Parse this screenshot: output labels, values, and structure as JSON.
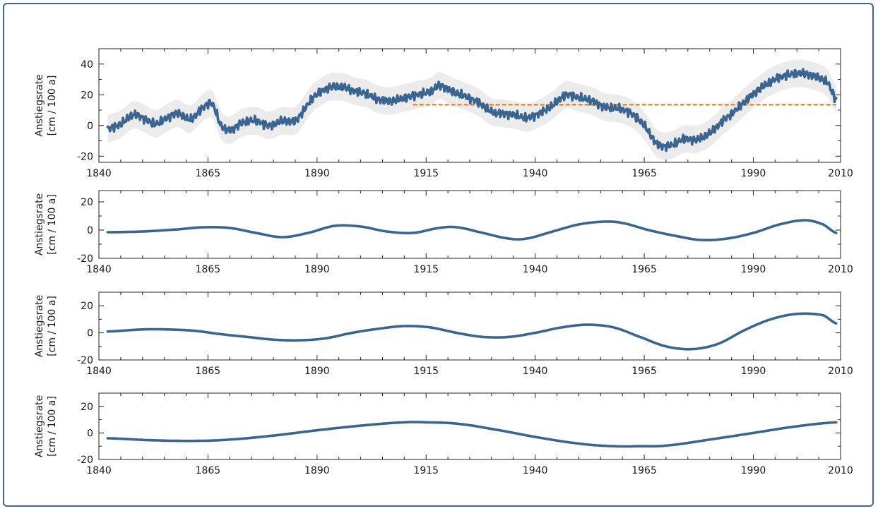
{
  "chart_data": [
    {
      "type": "line",
      "ylabel_line1": "Anstiegsrate",
      "ylabel_line2": "[cm / 100 a]",
      "xlim": [
        1840,
        2010
      ],
      "ylim": [
        -24,
        50
      ],
      "xticks": [
        1840,
        1865,
        1890,
        1915,
        1940,
        1965,
        1990,
        2010
      ],
      "yticks": [
        -20,
        0,
        20,
        40
      ],
      "grid": false,
      "noisy": true,
      "uncertainty_band_halfwidth": 9,
      "series": [
        {
          "color": "#3b6591",
          "x": [
            1842,
            1845,
            1848,
            1850,
            1853,
            1855,
            1858,
            1861,
            1864,
            1866,
            1868,
            1870,
            1873,
            1876,
            1879,
            1882,
            1885,
            1887,
            1889,
            1891,
            1893,
            1896,
            1899,
            1901,
            1904,
            1907,
            1910,
            1913,
            1916,
            1918,
            1921,
            1924,
            1927,
            1930,
            1932,
            1935,
            1938,
            1941,
            1944,
            1947,
            1950,
            1953,
            1956,
            1959,
            1962,
            1965,
            1968,
            1971,
            1974,
            1977,
            1980,
            1983,
            1986,
            1989,
            1992,
            1995,
            1998,
            2001,
            2004,
            2007,
            2009
          ],
          "values": [
            -2,
            1,
            7,
            5,
            1,
            4,
            8,
            4,
            12,
            14,
            0,
            -3,
            2,
            3,
            0,
            3,
            3,
            10,
            18,
            22,
            25,
            25,
            22,
            21,
            17,
            16,
            18,
            20,
            22,
            26,
            22,
            19,
            15,
            9,
            8,
            7,
            5,
            8,
            13,
            20,
            18,
            16,
            12,
            11,
            8,
            0,
            -12,
            -13,
            -9,
            -9,
            -5,
            3,
            10,
            18,
            25,
            30,
            33,
            34,
            32,
            28,
            17
          ]
        }
      ],
      "reference_line": {
        "x_from": 1912,
        "x_to": 2009,
        "value": 13.5,
        "color": "#f07d19"
      },
      "band_color": "#ececec"
    },
    {
      "type": "line",
      "ylabel_line1": "Anstiegsrate",
      "ylabel_line2": "[cm / 100 a]",
      "xlim": [
        1840,
        2010
      ],
      "ylim": [
        -20,
        28
      ],
      "xticks": [
        1840,
        1865,
        1890,
        1915,
        1940,
        1965,
        1990,
        2010
      ],
      "yticks": [
        -20,
        0,
        20
      ],
      "grid": false,
      "series": [
        {
          "color": "#3b6591",
          "x": [
            1842,
            1850,
            1858,
            1864,
            1870,
            1876,
            1882,
            1888,
            1894,
            1900,
            1906,
            1912,
            1918,
            1922,
            1928,
            1934,
            1938,
            1944,
            1950,
            1956,
            1960,
            1966,
            1972,
            1978,
            1984,
            1990,
            1996,
            2002,
            2006,
            2009
          ],
          "values": [
            -1.5,
            -1,
            0.5,
            2,
            1.5,
            -2,
            -5,
            -2,
            3,
            2.5,
            -1,
            -2,
            1.5,
            2,
            -2,
            -6,
            -6,
            -1,
            4,
            6,
            5,
            0,
            -4,
            -7,
            -6,
            -2,
            4,
            7,
            4,
            -2
          ]
        }
      ]
    },
    {
      "type": "line",
      "ylabel_line1": "Anstiegsrate",
      "ylabel_line2": "[cm / 100 a]",
      "xlim": [
        1840,
        2010
      ],
      "ylim": [
        -20,
        30
      ],
      "xticks": [
        1840,
        1865,
        1890,
        1915,
        1940,
        1965,
        1990,
        2010
      ],
      "yticks": [
        -20,
        0,
        20
      ],
      "grid": false,
      "series": [
        {
          "color": "#3b6591",
          "x": [
            1842,
            1850,
            1856,
            1862,
            1868,
            1874,
            1880,
            1886,
            1892,
            1898,
            1904,
            1910,
            1916,
            1922,
            1928,
            1934,
            1940,
            1946,
            1952,
            1958,
            1964,
            1970,
            1976,
            1982,
            1988,
            1994,
            2000,
            2006,
            2009
          ],
          "values": [
            1,
            2.5,
            2.5,
            1.5,
            -1,
            -3,
            -5,
            -5.5,
            -4,
            0,
            3,
            5,
            4,
            0,
            -3,
            -3,
            0,
            4,
            6,
            4,
            -3,
            -10,
            -12,
            -8,
            2,
            10,
            14,
            13,
            7
          ]
        }
      ]
    },
    {
      "type": "line",
      "ylabel_line1": "Anstiegsrate",
      "ylabel_line2": "[cm / 100 a]",
      "xlim": [
        1840,
        2010
      ],
      "ylim": [
        -20,
        30
      ],
      "xticks": [
        1840,
        1865,
        1890,
        1915,
        1940,
        1965,
        1990,
        2010
      ],
      "yticks": [
        -20,
        0,
        20
      ],
      "grid": false,
      "series": [
        {
          "color": "#3b6591",
          "x": [
            1842,
            1852,
            1862,
            1870,
            1880,
            1890,
            1900,
            1910,
            1915,
            1922,
            1930,
            1940,
            1950,
            1958,
            1964,
            1970,
            1980,
            1990,
            2000,
            2009
          ],
          "values": [
            -4,
            -5.5,
            -6,
            -5,
            -2,
            2,
            5.5,
            8,
            8,
            7,
            3,
            -3,
            -8,
            -10,
            -10,
            -9.5,
            -5,
            0,
            5,
            8
          ]
        }
      ]
    }
  ]
}
